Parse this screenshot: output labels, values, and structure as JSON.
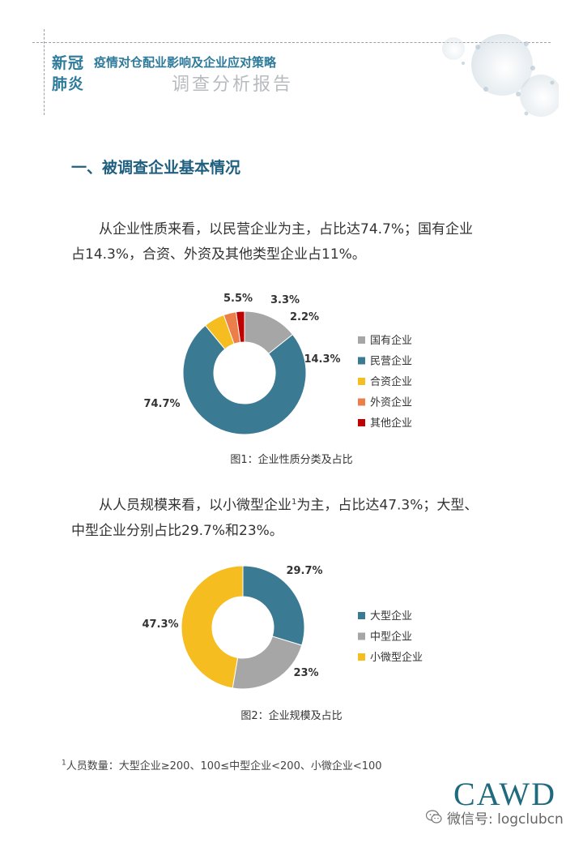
{
  "header": {
    "brand_line1": "新冠",
    "brand_line2": "肺炎",
    "title": "疫情对仓配业影响及企业应对策略",
    "subtitle": "调查分析报告"
  },
  "section": {
    "title": "一、被调查企业基本情况"
  },
  "para1": {
    "line1": "从企业性质来看，以民营企业为主，占比达74.7%；国有企业",
    "line2": "占14.3%，合资、外资及其他类型企业占11%。"
  },
  "para2": {
    "line1_a": "从人员规模来看，以小微型企业",
    "line1_sup": "1",
    "line1_b": "为主，占比达47.3%；大型、",
    "line2": "中型企业分别占比29.7%和23%。"
  },
  "chart_data": [
    {
      "type": "pie",
      "title": "图1：企业性质分类及占比",
      "donut": true,
      "legend_position": "right",
      "categories": [
        "国有企业",
        "民营企业",
        "合资企业",
        "外资企业",
        "其他企业"
      ],
      "values": [
        14.3,
        74.7,
        5.5,
        3.3,
        2.2
      ],
      "labels": [
        "14.3%",
        "74.7%",
        "5.5%",
        "3.3%",
        "2.2%"
      ],
      "colors": [
        "#a6a6a6",
        "#3b7a93",
        "#f5bd1f",
        "#ec7e4a",
        "#c00000"
      ]
    },
    {
      "type": "pie",
      "title": "图2：企业规模及占比",
      "donut": true,
      "legend_position": "right",
      "categories": [
        "大型企业",
        "中型企业",
        "小微型企业"
      ],
      "values": [
        29.7,
        23,
        47.3
      ],
      "labels": [
        "29.7%",
        "23%",
        "47.3%"
      ],
      "colors": [
        "#3b7a93",
        "#a6a6a6",
        "#f5bd1f"
      ]
    }
  ],
  "footnote": {
    "sup": "1",
    "text": "人员数量：大型企业≥200、100≤中型企业<200、小微企业<100"
  },
  "branding": {
    "logo": "CAWD",
    "wechat": "微信号: logclubcn",
    "wechat_icon": "wechat-icon"
  }
}
